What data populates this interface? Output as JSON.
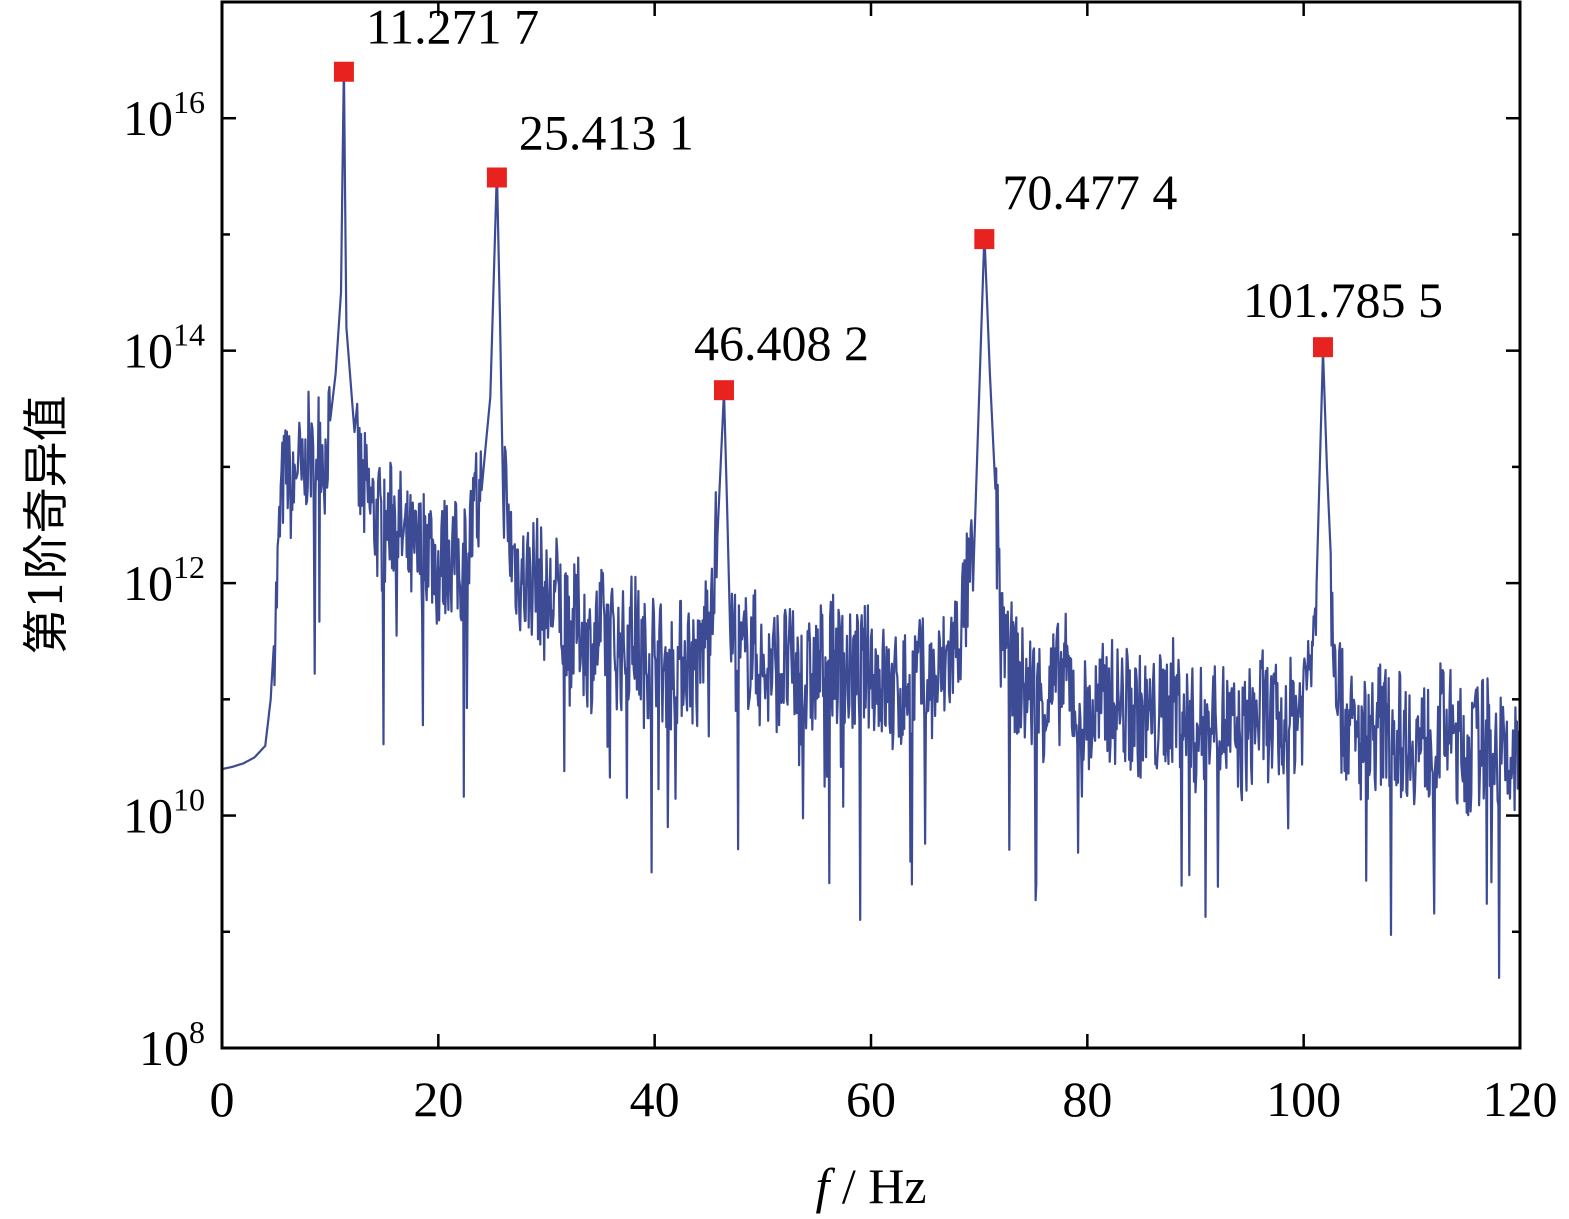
{
  "chart_data": {
    "type": "line",
    "xlabel_var": "f",
    "xlabel_unit": " / Hz",
    "ylabel": "第1阶奇异值",
    "xlim": [
      0,
      120
    ],
    "ylim_log10": [
      8,
      17
    ],
    "y_scale": "log",
    "x_ticks": [
      "0",
      "20",
      "40",
      "60",
      "80",
      "100",
      "120"
    ],
    "y_ticks": [
      {
        "base": "10",
        "exp": "8"
      },
      {
        "base": "10",
        "exp": "10"
      },
      {
        "base": "10",
        "exp": "12"
      },
      {
        "base": "10",
        "exp": "14"
      },
      {
        "base": "10",
        "exp": "16"
      }
    ],
    "series": [
      {
        "color": "#3d4b94",
        "x": [
          0,
          1,
          2,
          3,
          4,
          4.5,
          5,
          5.5,
          6,
          6.5,
          7,
          7.5,
          8,
          8.5,
          9,
          9.5,
          10,
          10.5,
          11,
          11.27,
          11.5,
          12,
          12.5,
          13,
          14,
          15,
          16,
          17,
          18,
          19,
          20,
          21,
          22,
          23,
          24,
          24.8,
          25.41,
          26,
          26.5,
          27,
          28,
          29,
          30,
          31,
          32,
          33,
          34,
          35,
          36,
          37,
          38,
          39,
          40,
          41,
          42,
          43,
          44,
          45,
          45.8,
          46.41,
          47,
          48,
          49,
          50,
          52,
          54,
          56,
          58,
          60,
          62,
          64,
          66,
          68,
          69.5,
          70.48,
          71.5,
          72.5,
          74,
          76,
          78,
          80,
          82,
          84,
          86,
          88,
          90,
          92,
          94,
          96,
          98,
          100,
          101.2,
          101.79,
          102.5,
          103.5,
          105,
          107,
          109,
          111,
          113,
          115,
          117,
          119,
          120
        ],
        "log10_values": [
          10.4,
          10.42,
          10.45,
          10.5,
          10.6,
          11.0,
          11.8,
          12.8,
          13.0,
          12.7,
          13.1,
          12.8,
          13.2,
          12.9,
          13.3,
          13.0,
          13.4,
          13.8,
          14.5,
          16.45,
          14.2,
          13.6,
          13.0,
          12.8,
          12.6,
          12.4,
          12.6,
          12.3,
          12.2,
          12.4,
          12.1,
          12.3,
          12.1,
          12.4,
          12.8,
          13.6,
          15.55,
          13.0,
          12.4,
          12.2,
          12.0,
          12.1,
          11.8,
          11.9,
          11.5,
          11.7,
          11.4,
          11.6,
          11.5,
          11.4,
          11.6,
          11.3,
          11.5,
          11.2,
          11.3,
          11.4,
          11.2,
          11.8,
          12.4,
          13.65,
          11.6,
          11.3,
          11.5,
          11.2,
          11.3,
          11.1,
          11.4,
          11.2,
          11.3,
          11.0,
          11.2,
          11.1,
          11.5,
          12.2,
          15.0,
          12.6,
          11.4,
          11.1,
          11.0,
          11.2,
          10.8,
          11.0,
          10.9,
          10.8,
          11.0,
          10.7,
          10.9,
          10.6,
          10.9,
          10.7,
          11.0,
          12.0,
          14.0,
          12.0,
          10.9,
          10.6,
          10.8,
          10.7,
          10.6,
          10.8,
          10.5,
          10.7,
          10.4,
          10.5
        ]
      }
    ],
    "peaks": [
      {
        "x": 11.2717,
        "log10_y": 16.4,
        "label": "11.271 7"
      },
      {
        "x": 25.4131,
        "log10_y": 15.49,
        "label": "25.413 1"
      },
      {
        "x": 46.4082,
        "log10_y": 13.66,
        "label": "46.408 2"
      },
      {
        "x": 70.4774,
        "log10_y": 14.96,
        "label": "70.477 4"
      },
      {
        "x": 101.7855,
        "log10_y": 14.03,
        "label": "101.785 5"
      }
    ],
    "peak_color": "#e8221f",
    "grid": false
  }
}
